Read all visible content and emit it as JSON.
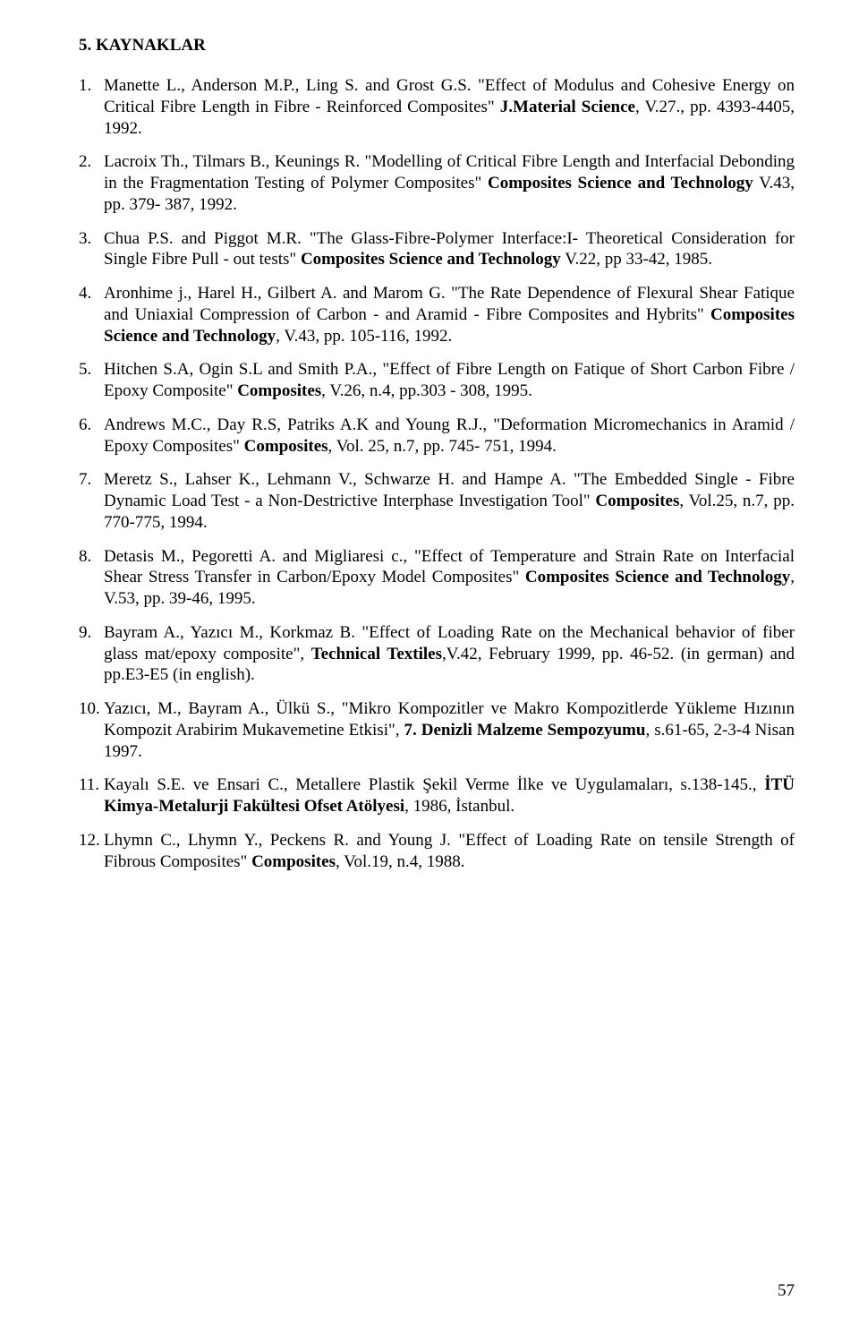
{
  "heading": "5. KAYNAKLAR",
  "page_number": "57",
  "refs": [
    {
      "num": "1.",
      "segments": [
        {
          "t": "Manette L., Anderson M.P., Ling S. and Grost G.S. \"Effect of Modulus and Cohesive Energy on Critical Fibre Length in Fibre - Reinforced Composites\" "
        },
        {
          "t": "J.Material Science",
          "b": true
        },
        {
          "t": ", V.27., pp. 4393-4405, 1992."
        }
      ]
    },
    {
      "num": "2.",
      "segments": [
        {
          "t": "Lacroix Th., Tilmars B., Keunings R. \"Modelling of Critical Fibre Length and Interfacial Debonding in the Fragmentation Testing of Polymer Composites\" "
        },
        {
          "t": "Composites Science and Technology",
          "b": true
        },
        {
          "t": " V.43, pp. 379- 387, 1992."
        }
      ]
    },
    {
      "num": "3.",
      "segments": [
        {
          "t": "Chua P.S. and Piggot M.R. \"The Glass-Fibre-Polymer Interface:I- Theoretical Consideration for Single Fibre Pull - out tests\" "
        },
        {
          "t": "Composites Science and Technology",
          "b": true
        },
        {
          "t": " V.22, pp 33-42, 1985."
        }
      ]
    },
    {
      "num": "4.",
      "segments": [
        {
          "t": "Aronhime j., Harel H., Gilbert A. and Marom G. \"The Rate Dependence of Flexural Shear Fatique and Uniaxial Compression of Carbon - and Aramid - Fibre Composites and Hybrits\" "
        },
        {
          "t": "Composites Science and Technology",
          "b": true
        },
        {
          "t": ", V.43, pp. 105-116, 1992."
        }
      ]
    },
    {
      "num": "5.",
      "segments": [
        {
          "t": "Hitchen S.A, Ogin S.L and Smith P.A., \"Effect of Fibre Length on Fatique of Short Carbon Fibre / Epoxy Composite\" "
        },
        {
          "t": "Composites",
          "b": true
        },
        {
          "t": ", V.26, n.4, pp.303 - 308, 1995."
        }
      ]
    },
    {
      "num": "6.",
      "segments": [
        {
          "t": "Andrews M.C., Day R.S, Patriks A.K and Young R.J., \"Deformation Micromechanics in Aramid / Epoxy Composites\" "
        },
        {
          "t": "Composites",
          "b": true
        },
        {
          "t": ", Vol. 25, n.7, pp. 745- 751, 1994."
        }
      ]
    },
    {
      "num": "7.",
      "segments": [
        {
          "t": "Meretz S., Lahser K., Lehmann V., Schwarze H. and Hampe A. \"The Embedded Single - Fibre Dynamic Load Test - a Non-Destrictive Interphase Investigation Tool\" "
        },
        {
          "t": "Composites",
          "b": true
        },
        {
          "t": ", Vol.25, n.7, pp. 770-775, 1994."
        }
      ]
    },
    {
      "num": "8.",
      "segments": [
        {
          "t": "Detasis M., Pegoretti A. and Migliaresi c., \"Effect of Temperature and Strain Rate on Interfacial Shear Stress Transfer in Carbon/Epoxy Model Composites\" "
        },
        {
          "t": "Composites Science and Technology",
          "b": true
        },
        {
          "t": ", V.53, pp. 39-46, 1995."
        }
      ]
    },
    {
      "num": "9.",
      "segments": [
        {
          "t": "Bayram A., Yazıcı M., Korkmaz B. \"Effect of Loading Rate on the Mechanical behavior of fiber glass mat/epoxy composite\", "
        },
        {
          "t": "Technical Textiles",
          "b": true
        },
        {
          "t": ",V.42, February 1999, pp. 46-52. (in german) and pp.E3-E5 (in english)."
        }
      ]
    },
    {
      "num": "10.",
      "segments": [
        {
          "t": "Yazıcı, M., Bayram A., Ülkü S., \"Mikro Kompozitler ve Makro Kompozitlerde Yükleme Hızının Kompozit Arabirim Mukavemetine Etkisi\", "
        },
        {
          "t": "7. Denizli Malzeme Sempozyumu",
          "b": true
        },
        {
          "t": ", s.61-65, 2-3-4 Nisan 1997."
        }
      ]
    },
    {
      "num": "11.",
      "segments": [
        {
          "t": "Kayalı S.E. ve Ensari C., Metallere Plastik Şekil Verme İlke ve Uygulamaları, s.138-145., "
        },
        {
          "t": "İTÜ Kimya-Metalurji Fakültesi Ofset Atölyesi",
          "b": true
        },
        {
          "t": ", 1986, İstanbul."
        }
      ]
    },
    {
      "num": "12.",
      "segments": [
        {
          "t": "Lhymn C., Lhymn Y., Peckens R. and Young J. \"Effect of Loading Rate on tensile Strength of Fibrous Composites\" "
        },
        {
          "t": "Composites",
          "b": true
        },
        {
          "t": ", Vol.19, n.4, 1988."
        }
      ]
    }
  ]
}
